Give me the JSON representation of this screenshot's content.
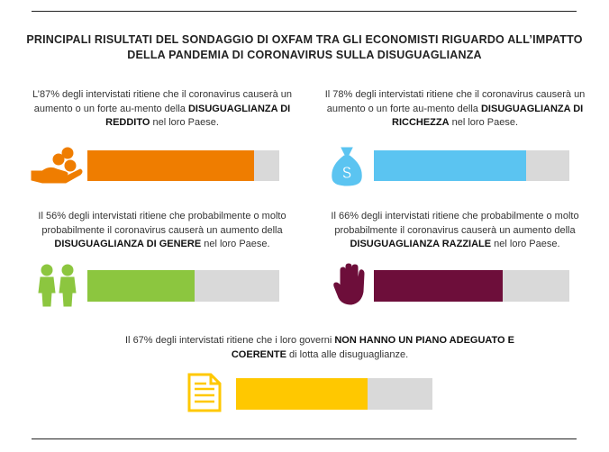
{
  "title": "PRINCIPALI RISULTATI DEL SONDAGGIO DI OXFAM TRA GLI ECONOMISTI RIGUARDO ALL’IMPATTO DELLA PANDEMIA DI CORONAVIRUS SULLA DISUGUAGLIANZA",
  "xlim": [
    0,
    100
  ],
  "items": [
    {
      "lead": "L’",
      "value_label": "87%",
      "text_before": " degli intervistati ritiene che il coronavirus causerà un aumento o un forte au-mento della ",
      "emphasis": "DISUGUAGLIANZA DI REDDITO",
      "text_after": " nel loro Paese.",
      "value": 87,
      "color": "#ef7d00"
    },
    {
      "lead": "Il ",
      "value_label": "78%",
      "text_before": " degli intervistati ritiene che il coronavirus causerà un aumento o un forte au-mento della ",
      "emphasis": "DISUGUAGLIANZA DI RICCHEZZA",
      "text_after": " nel loro Paese.",
      "value": 78,
      "color": "#5bc4f1"
    },
    {
      "lead": "Il ",
      "value_label": "56%",
      "text_before": " degli intervistati ritiene che probabilmente o molto probabilmente il coronavirus causerà un aumento della ",
      "emphasis": "DISUGUAGLIANZA DI GENERE",
      "text_after": " nel loro Paese.",
      "value": 56,
      "color": "#8cc63f"
    },
    {
      "lead": "Il ",
      "value_label": "66%",
      "text_before": " degli intervistati ritiene che probabilmente o molto probabilmente il coronavirus causerà un aumento della ",
      "emphasis": "DISUGUAGLIANZA RAZZIALE",
      "text_after": " nel loro Paese.",
      "value": 66,
      "color": "#6d0e3a"
    },
    {
      "lead": "Il ",
      "value_label": "67%",
      "text_before": " degli intervistati ritiene che i loro governi ",
      "emphasis": "NON HANNO UN PIANO ADEGUATO E COERENTE",
      "text_after": " di lotta alle disuguaglianze.",
      "value": 67,
      "color": "#ffc800"
    }
  ]
}
